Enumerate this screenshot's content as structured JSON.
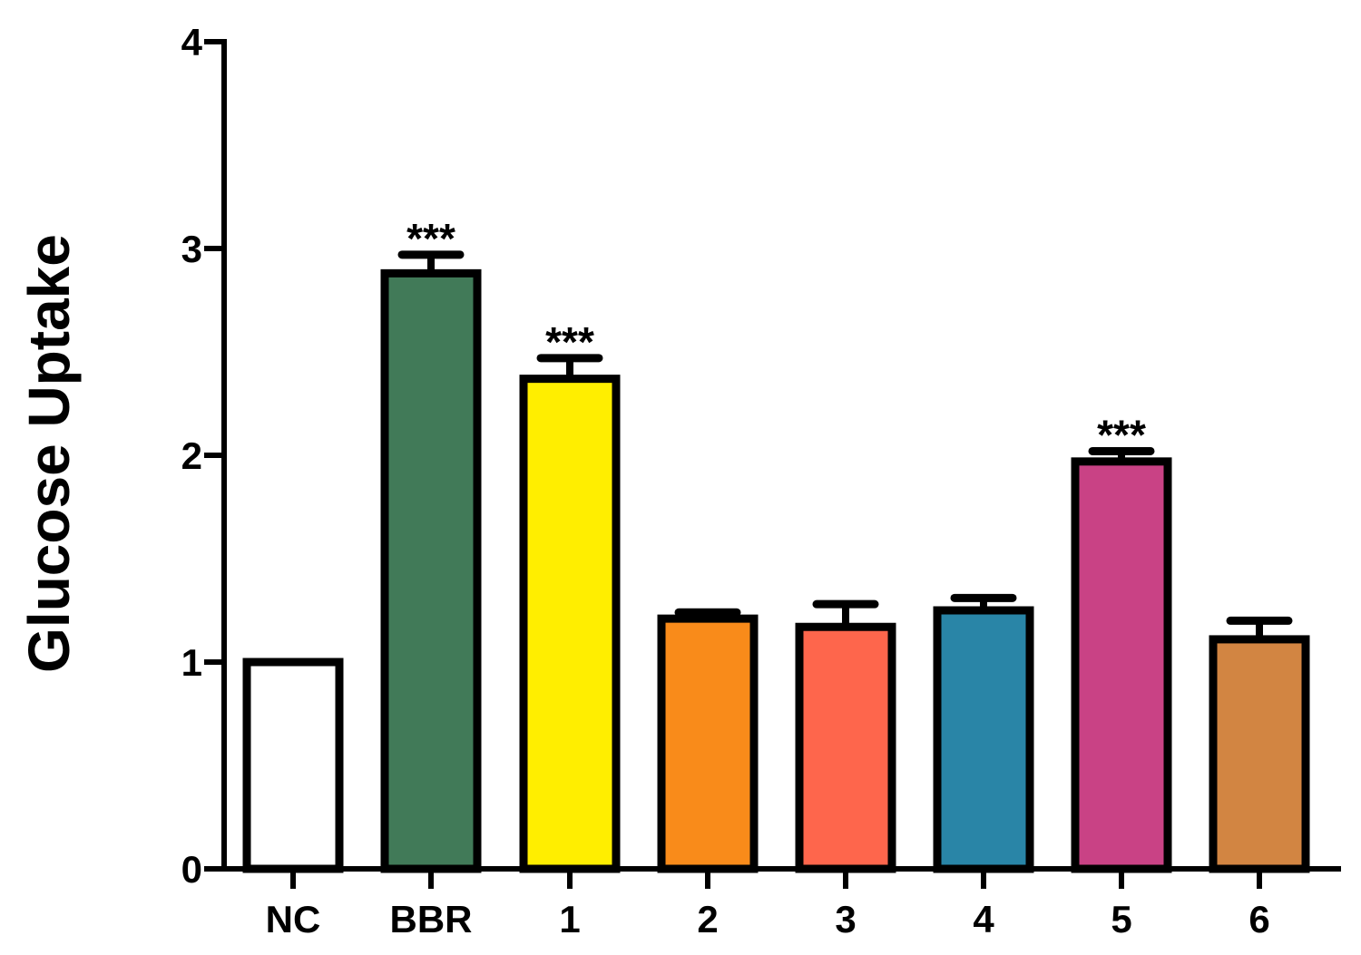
{
  "chart_data": {
    "type": "bar",
    "title": "",
    "xlabel": "",
    "ylabel": "Glucose Uptake",
    "ylim": [
      0,
      4
    ],
    "yticks": [
      "0",
      "1",
      "2",
      "3",
      "4"
    ],
    "grid": false,
    "legend": "none",
    "categories": [
      "NC",
      "BBR",
      "1",
      "2",
      "3",
      "4",
      "5",
      "6"
    ],
    "values": [
      1.0,
      2.88,
      2.37,
      1.21,
      1.17,
      1.25,
      1.97,
      1.11
    ],
    "errors": [
      0.0,
      0.09,
      0.1,
      0.03,
      0.11,
      0.06,
      0.05,
      0.09
    ],
    "significance": [
      "",
      "***",
      "***",
      "",
      "",
      "",
      "***",
      ""
    ],
    "colors": [
      "#ffffff",
      "#417a58",
      "#ffee00",
      "#f98b1a",
      "#fe664c",
      "#2985a7",
      "#c94285",
      "#d28542"
    ]
  }
}
